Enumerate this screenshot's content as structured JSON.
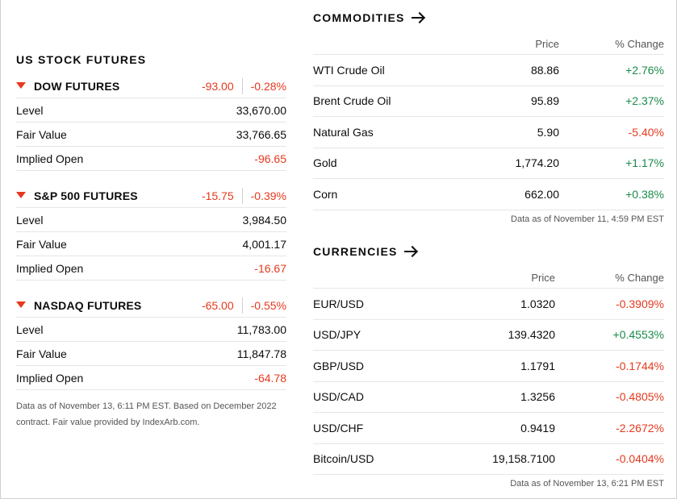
{
  "futures": {
    "title": "US STOCK FUTURES",
    "items": [
      {
        "name": "DOW FUTURES",
        "change": "-93.00",
        "pct": "-0.28%",
        "rows": [
          {
            "label": "Level",
            "value": "33,670.00"
          },
          {
            "label": "Fair Value",
            "value": "33,766.65"
          },
          {
            "label": "Implied Open",
            "value": "-96.65"
          }
        ]
      },
      {
        "name": "S&P 500 FUTURES",
        "change": "-15.75",
        "pct": "-0.39%",
        "rows": [
          {
            "label": "Level",
            "value": "3,984.50"
          },
          {
            "label": "Fair Value",
            "value": "4,001.17"
          },
          {
            "label": "Implied Open",
            "value": "-16.67"
          }
        ]
      },
      {
        "name": "NASDAQ FUTURES",
        "change": "-65.00",
        "pct": "-0.55%",
        "rows": [
          {
            "label": "Level",
            "value": "11,783.00"
          },
          {
            "label": "Fair Value",
            "value": "11,847.78"
          },
          {
            "label": "Implied Open",
            "value": "-64.78"
          }
        ]
      }
    ],
    "note": "Data as of November 13, 6:11 PM EST. Based on December 2022 contract. Fair value provided by IndexArb.com."
  },
  "commodities": {
    "title": "COMMODITIES",
    "col_price": "Price",
    "col_change": "% Change",
    "rows": [
      {
        "name": "WTI Crude Oil",
        "price": "88.86",
        "change": "+2.76%"
      },
      {
        "name": "Brent Crude Oil",
        "price": "95.89",
        "change": "+2.37%"
      },
      {
        "name": "Natural Gas",
        "price": "5.90",
        "change": "-5.40%"
      },
      {
        "name": "Gold",
        "price": "1,774.20",
        "change": "+1.17%"
      },
      {
        "name": "Corn",
        "price": "662.00",
        "change": "+0.38%"
      }
    ],
    "note": "Data as of November 11, 4:59 PM EST"
  },
  "currencies": {
    "title": "CURRENCIES",
    "col_price": "Price",
    "col_change": "% Change",
    "rows": [
      {
        "name": "EUR/USD",
        "price": "1.0320",
        "change": "-0.3909%"
      },
      {
        "name": "USD/JPY",
        "price": "139.4320",
        "change": "+0.4553%"
      },
      {
        "name": "GBP/USD",
        "price": "1.1791",
        "change": "-0.1744%"
      },
      {
        "name": "USD/CAD",
        "price": "1.3256",
        "change": "-0.4805%"
      },
      {
        "name": "USD/CHF",
        "price": "0.9419",
        "change": "-2.2672%"
      },
      {
        "name": "Bitcoin/USD",
        "price": "19,158.7100",
        "change": "-0.0404%"
      }
    ],
    "note": "Data as of November 13, 6:21 PM EST"
  },
  "colors": {
    "negative": "#e5391e",
    "positive": "#1a8a4a"
  }
}
